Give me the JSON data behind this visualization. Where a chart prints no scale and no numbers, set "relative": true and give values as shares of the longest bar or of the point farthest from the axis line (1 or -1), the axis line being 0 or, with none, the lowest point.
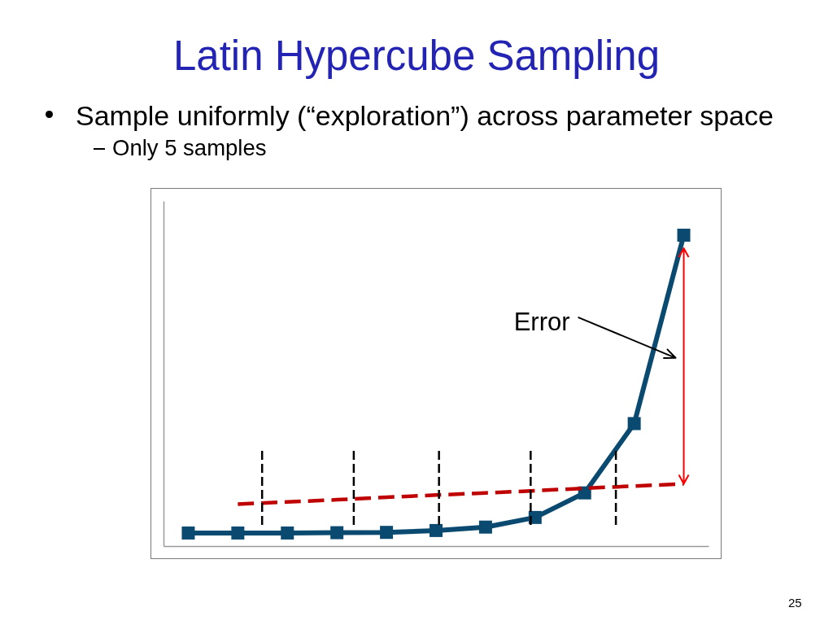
{
  "chart_data": {
    "type": "line",
    "title": "Latin Hypercube Sampling",
    "subtitle": "Sample uniformly (“exploration”) across parameter space",
    "relative": true,
    "categories": [
      null,
      null,
      null,
      null,
      null,
      null,
      null,
      null,
      null,
      null,
      null
    ],
    "series": [
      {
        "color": "#0b4a70",
        "marker": "square",
        "values": [
          0.042,
          0.042,
          0.042,
          0.043,
          0.044,
          0.05,
          0.061,
          0.092,
          0.171,
          0.394,
          1
        ]
      },
      {
        "color": "#c00000",
        "line_style": "dashed",
        "values": [
          null,
          0.135,
          0.142,
          0.149,
          0.157,
          0.164,
          0.171,
          0.178,
          0.186,
          0.193,
          0.2
        ]
      }
    ],
    "annotations": [
      "Only 5 samples",
      "Error",
      "25"
    ]
  }
}
